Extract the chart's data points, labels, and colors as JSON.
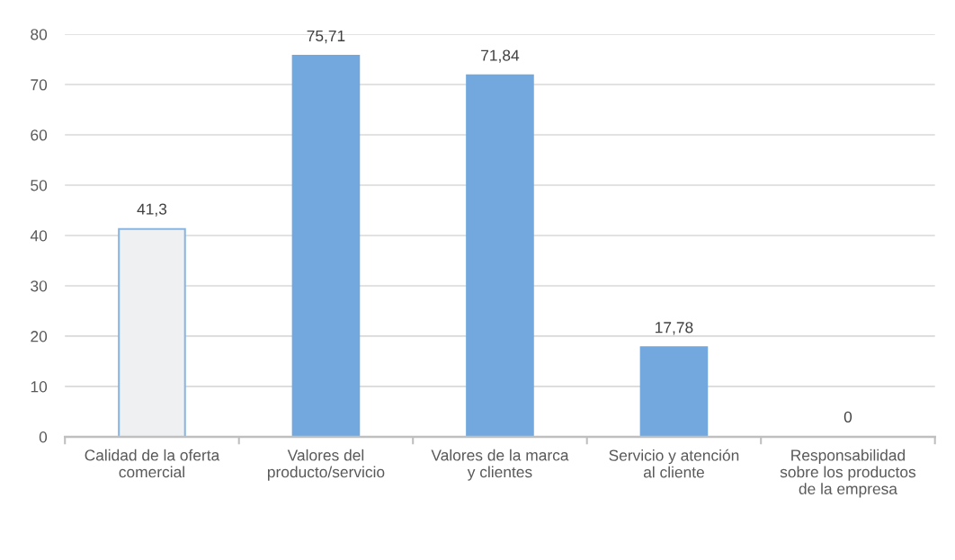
{
  "chart_data": {
    "type": "bar",
    "categories": [
      "Calidad de la oferta\ncomercial",
      "Valores del\nproducto/servicio",
      "Valores de la marca\ny clientes",
      "Servicio y atención\nal cliente",
      "Responsabilidad\nsobre los productos\nde la empresa"
    ],
    "values": [
      41.3,
      75.71,
      71.84,
      17.78,
      0
    ],
    "colors": [
      "#eef0f2",
      "#72a8de",
      "#72a8de",
      "#72a8de",
      "#72a8de"
    ],
    "value_labels": [
      "41,3",
      "75,71",
      "71,84",
      "17,78",
      "0"
    ],
    "ylim": [
      0,
      80
    ],
    "yticks": [
      0,
      10,
      20,
      30,
      40,
      50,
      60,
      70,
      80
    ],
    "grid": "y",
    "legend": false
  }
}
